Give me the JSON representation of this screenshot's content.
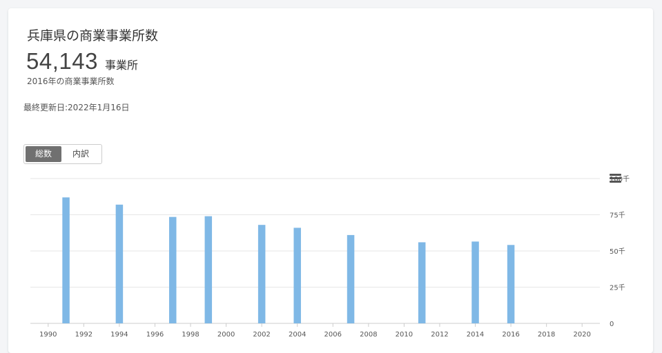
{
  "header": {
    "title": "兵庫県の商業事業所数",
    "value": "54,143",
    "unit": "事業所",
    "caption": "2016年の商業事業所数",
    "updated": "最終更新日:2022年1月16日"
  },
  "toggle": {
    "total_label": "総数",
    "breakdown_label": "内訳",
    "selected": "総数"
  },
  "menu": {
    "icon": "hamburger-menu-icon"
  },
  "colors": {
    "bar": "#7fb8e6",
    "gridline": "#e6e6e6",
    "axis": "#cccccc"
  },
  "chart_data": {
    "type": "bar",
    "x_ticks": [
      "1990",
      "1992",
      "1994",
      "1996",
      "1998",
      "2000",
      "2002",
      "2004",
      "2006",
      "2008",
      "2010",
      "2012",
      "2014",
      "2016",
      "2018",
      "2020"
    ],
    "y_ticks": [
      "0",
      "25千",
      "50千",
      "75千",
      "100千"
    ],
    "xlim": [
      1989,
      2021
    ],
    "ylim": [
      0,
      100000
    ],
    "y_axis_position": "right",
    "grid": true,
    "points": [
      {
        "x": 1991,
        "y": 87000
      },
      {
        "x": 1994,
        "y": 82000
      },
      {
        "x": 1997,
        "y": 73500
      },
      {
        "x": 1999,
        "y": 74000
      },
      {
        "x": 2002,
        "y": 68000
      },
      {
        "x": 2004,
        "y": 66000
      },
      {
        "x": 2007,
        "y": 61000
      },
      {
        "x": 2011,
        "y": 56000
      },
      {
        "x": 2014,
        "y": 56500
      },
      {
        "x": 2016,
        "y": 54143
      }
    ]
  }
}
